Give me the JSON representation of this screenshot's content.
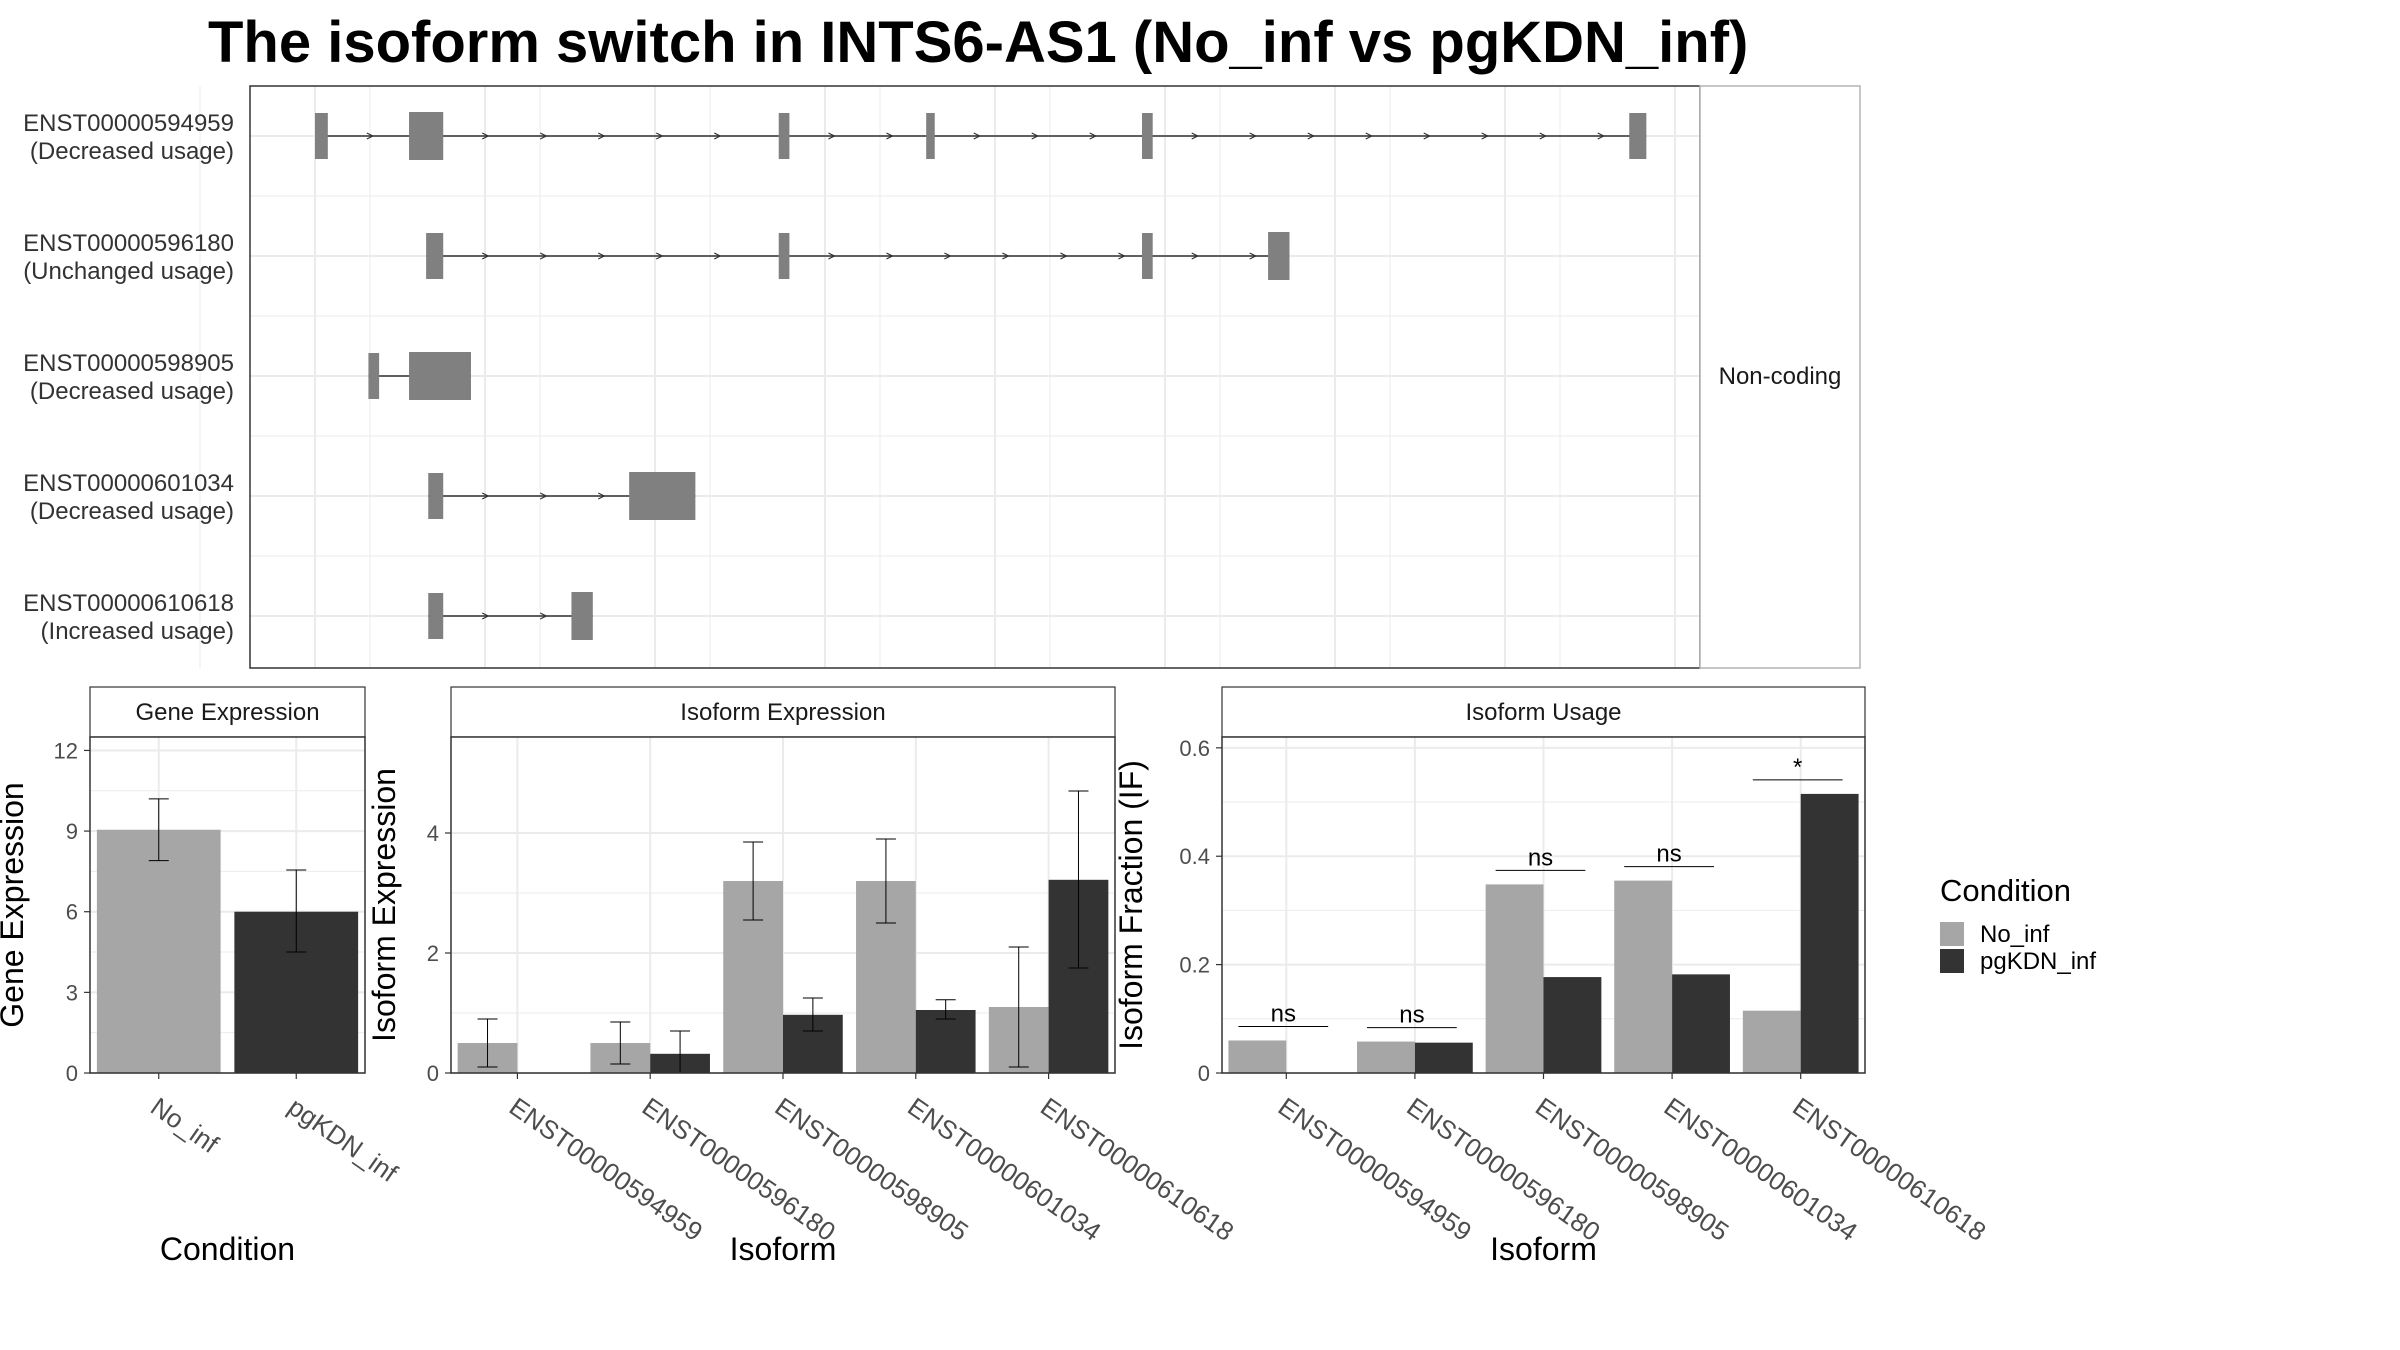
{
  "title": "The isoform switch in INTS6-AS1 (No_inf vs pgKDN_inf)",
  "colors": {
    "No_inf": "#a6a6a6",
    "pgKDN_inf": "#333333",
    "exon": "#808080",
    "grid": "#ebebeb",
    "panel_border": "#333333",
    "strip_border": "#b3b3b3"
  },
  "transcript_plot": {
    "facet_label": "Non-coding",
    "transcripts": [
      {
        "id": "ENST00000594959",
        "usage": "(Decreased usage)",
        "exons": [
          [
            0.0,
            0.6
          ],
          [
            4.4,
            6.0
          ],
          [
            21.7,
            22.2
          ],
          [
            28.6,
            29.0
          ],
          [
            38.7,
            39.2
          ],
          [
            61.5,
            62.3
          ]
        ]
      },
      {
        "id": "ENST00000596180",
        "usage": "(Unchanged usage)",
        "exons": [
          [
            5.2,
            6.0
          ],
          [
            21.7,
            22.2
          ],
          [
            38.7,
            39.2
          ],
          [
            44.6,
            45.6
          ]
        ]
      },
      {
        "id": "ENST00000598905",
        "usage": "(Decreased usage)",
        "exons": [
          [
            2.5,
            3.0
          ],
          [
            4.4,
            7.3
          ]
        ]
      },
      {
        "id": "ENST00000601034",
        "usage": "(Decreased usage)",
        "exons": [
          [
            5.3,
            6.0
          ],
          [
            14.7,
            17.8
          ]
        ]
      },
      {
        "id": "ENST00000610618",
        "usage": "(Increased usage)",
        "exons": [
          [
            5.3,
            6.0
          ],
          [
            12.0,
            13.0
          ]
        ]
      }
    ]
  },
  "chart_data": [
    {
      "type": "bar",
      "title": "Gene Expression",
      "xlabel": "Condition",
      "ylabel": "Gene Expression",
      "categories": [
        "No_inf",
        "pgKDN_inf"
      ],
      "values": [
        9.05,
        6.0
      ],
      "errors": [
        [
          7.9,
          10.2
        ],
        [
          4.5,
          7.55
        ]
      ],
      "ylim": [
        0,
        12.5
      ],
      "yticks": [
        0,
        3,
        6,
        9,
        12
      ]
    },
    {
      "type": "bar",
      "title": "Isoform Expression",
      "xlabel": "Isoform",
      "ylabel": "Isoform Expression",
      "categories": [
        "ENST00000594959",
        "ENST00000596180",
        "ENST00000598905",
        "ENST00000601034",
        "ENST00000610618"
      ],
      "series": [
        {
          "name": "No_inf",
          "values": [
            0.5,
            0.5,
            3.2,
            3.2,
            1.1
          ],
          "errors": [
            [
              0.1,
              0.9
            ],
            [
              0.15,
              0.85
            ],
            [
              2.55,
              3.85
            ],
            [
              2.5,
              3.9
            ],
            [
              0.1,
              2.1
            ]
          ]
        },
        {
          "name": "pgKDN_inf",
          "values": [
            0.0,
            0.32,
            0.97,
            1.05,
            3.22
          ],
          "errors": [
            [
              0.0,
              0.0
            ],
            [
              0.0,
              0.7
            ],
            [
              0.7,
              1.25
            ],
            [
              0.9,
              1.22
            ],
            [
              1.75,
              4.7
            ]
          ]
        }
      ],
      "ylim": [
        0,
        5.6
      ],
      "yticks": [
        0,
        2,
        4
      ]
    },
    {
      "type": "bar",
      "title": "Isoform Usage",
      "xlabel": "Isoform",
      "ylabel": "Isoform Fraction (IF)",
      "categories": [
        "ENST00000594959",
        "ENST00000596180",
        "ENST00000598905",
        "ENST00000601034",
        "ENST00000610618"
      ],
      "series": [
        {
          "name": "No_inf",
          "values": [
            0.06,
            0.058,
            0.348,
            0.355,
            0.115
          ]
        },
        {
          "name": "pgKDN_inf",
          "values": [
            0.0,
            0.056,
            0.177,
            0.182,
            0.515
          ]
        }
      ],
      "significance": [
        "ns",
        "ns",
        "ns",
        "ns",
        "*"
      ],
      "ylim": [
        0,
        0.62
      ],
      "yticks": [
        0.0,
        0.2,
        0.4,
        0.6
      ]
    }
  ],
  "legend": {
    "title": "Condition",
    "items": [
      "No_inf",
      "pgKDN_inf"
    ]
  }
}
